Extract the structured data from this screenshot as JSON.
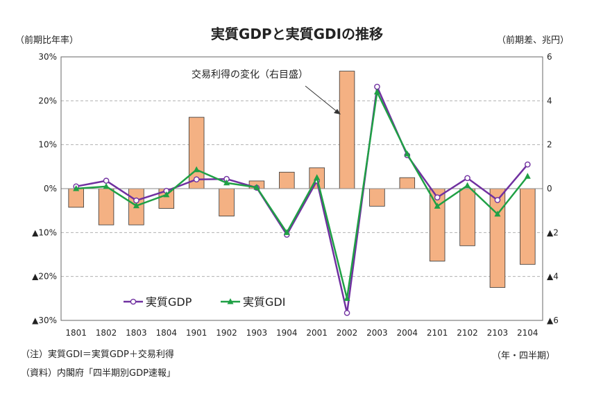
{
  "chart_data": {
    "type": "bar+line",
    "title": "実質GDPと実質GDIの推移",
    "left_axis_label": "（前期比年率）",
    "right_axis_label": "（前期差、兆円）",
    "x_axis_label": "（年・四半期）",
    "categories": [
      "1801",
      "1802",
      "1803",
      "1804",
      "1901",
      "1902",
      "1903",
      "1904",
      "2001",
      "2002",
      "2003",
      "2004",
      "2101",
      "2102",
      "2103",
      "2104"
    ],
    "left_ticks": [
      "30%",
      "20%",
      "10%",
      "0%",
      "▲10%",
      "▲20%",
      "▲30%"
    ],
    "right_ticks": [
      "6",
      "4",
      "2",
      "0",
      "▲2",
      "▲4",
      "▲6"
    ],
    "ylim_left": [
      -30,
      30
    ],
    "ylim_right": [
      -6,
      6
    ],
    "bars": {
      "name": "交易利得の変化（右目盛）",
      "axis": "right",
      "color": "#f4b183",
      "values": [
        -0.85,
        -1.65,
        -1.65,
        -0.9,
        3.25,
        -1.25,
        0.35,
        0.75,
        0.95,
        5.35,
        -0.8,
        0.5,
        -3.3,
        -2.6,
        -4.5,
        -3.45
      ]
    },
    "series": [
      {
        "name": "実質GDP",
        "axis": "left",
        "color": "#7030a0",
        "marker": "circle",
        "values": [
          0.5,
          1.8,
          -2.7,
          -0.5,
          2.1,
          2.2,
          0.2,
          -10.5,
          1.8,
          -28.3,
          23.2,
          7.6,
          -2.0,
          2.4,
          -2.6,
          5.5
        ]
      },
      {
        "name": "実質GDI",
        "axis": "left",
        "color": "#1fa045",
        "marker": "triangle",
        "values": [
          0.0,
          0.5,
          -3.9,
          -1.4,
          4.3,
          1.3,
          0.3,
          -10.0,
          2.5,
          -25.0,
          22.0,
          7.9,
          -4.0,
          0.7,
          -5.8,
          2.8
        ]
      }
    ],
    "annotation": "交易利得の変化（右目盛）",
    "legend_position": "bottom-left",
    "grid": "horizontal dashed"
  },
  "notes": [
    "（注）実質GDI＝実質GDP＋交易利得",
    "（資料）内閣府「四半期別GDP速報」"
  ]
}
